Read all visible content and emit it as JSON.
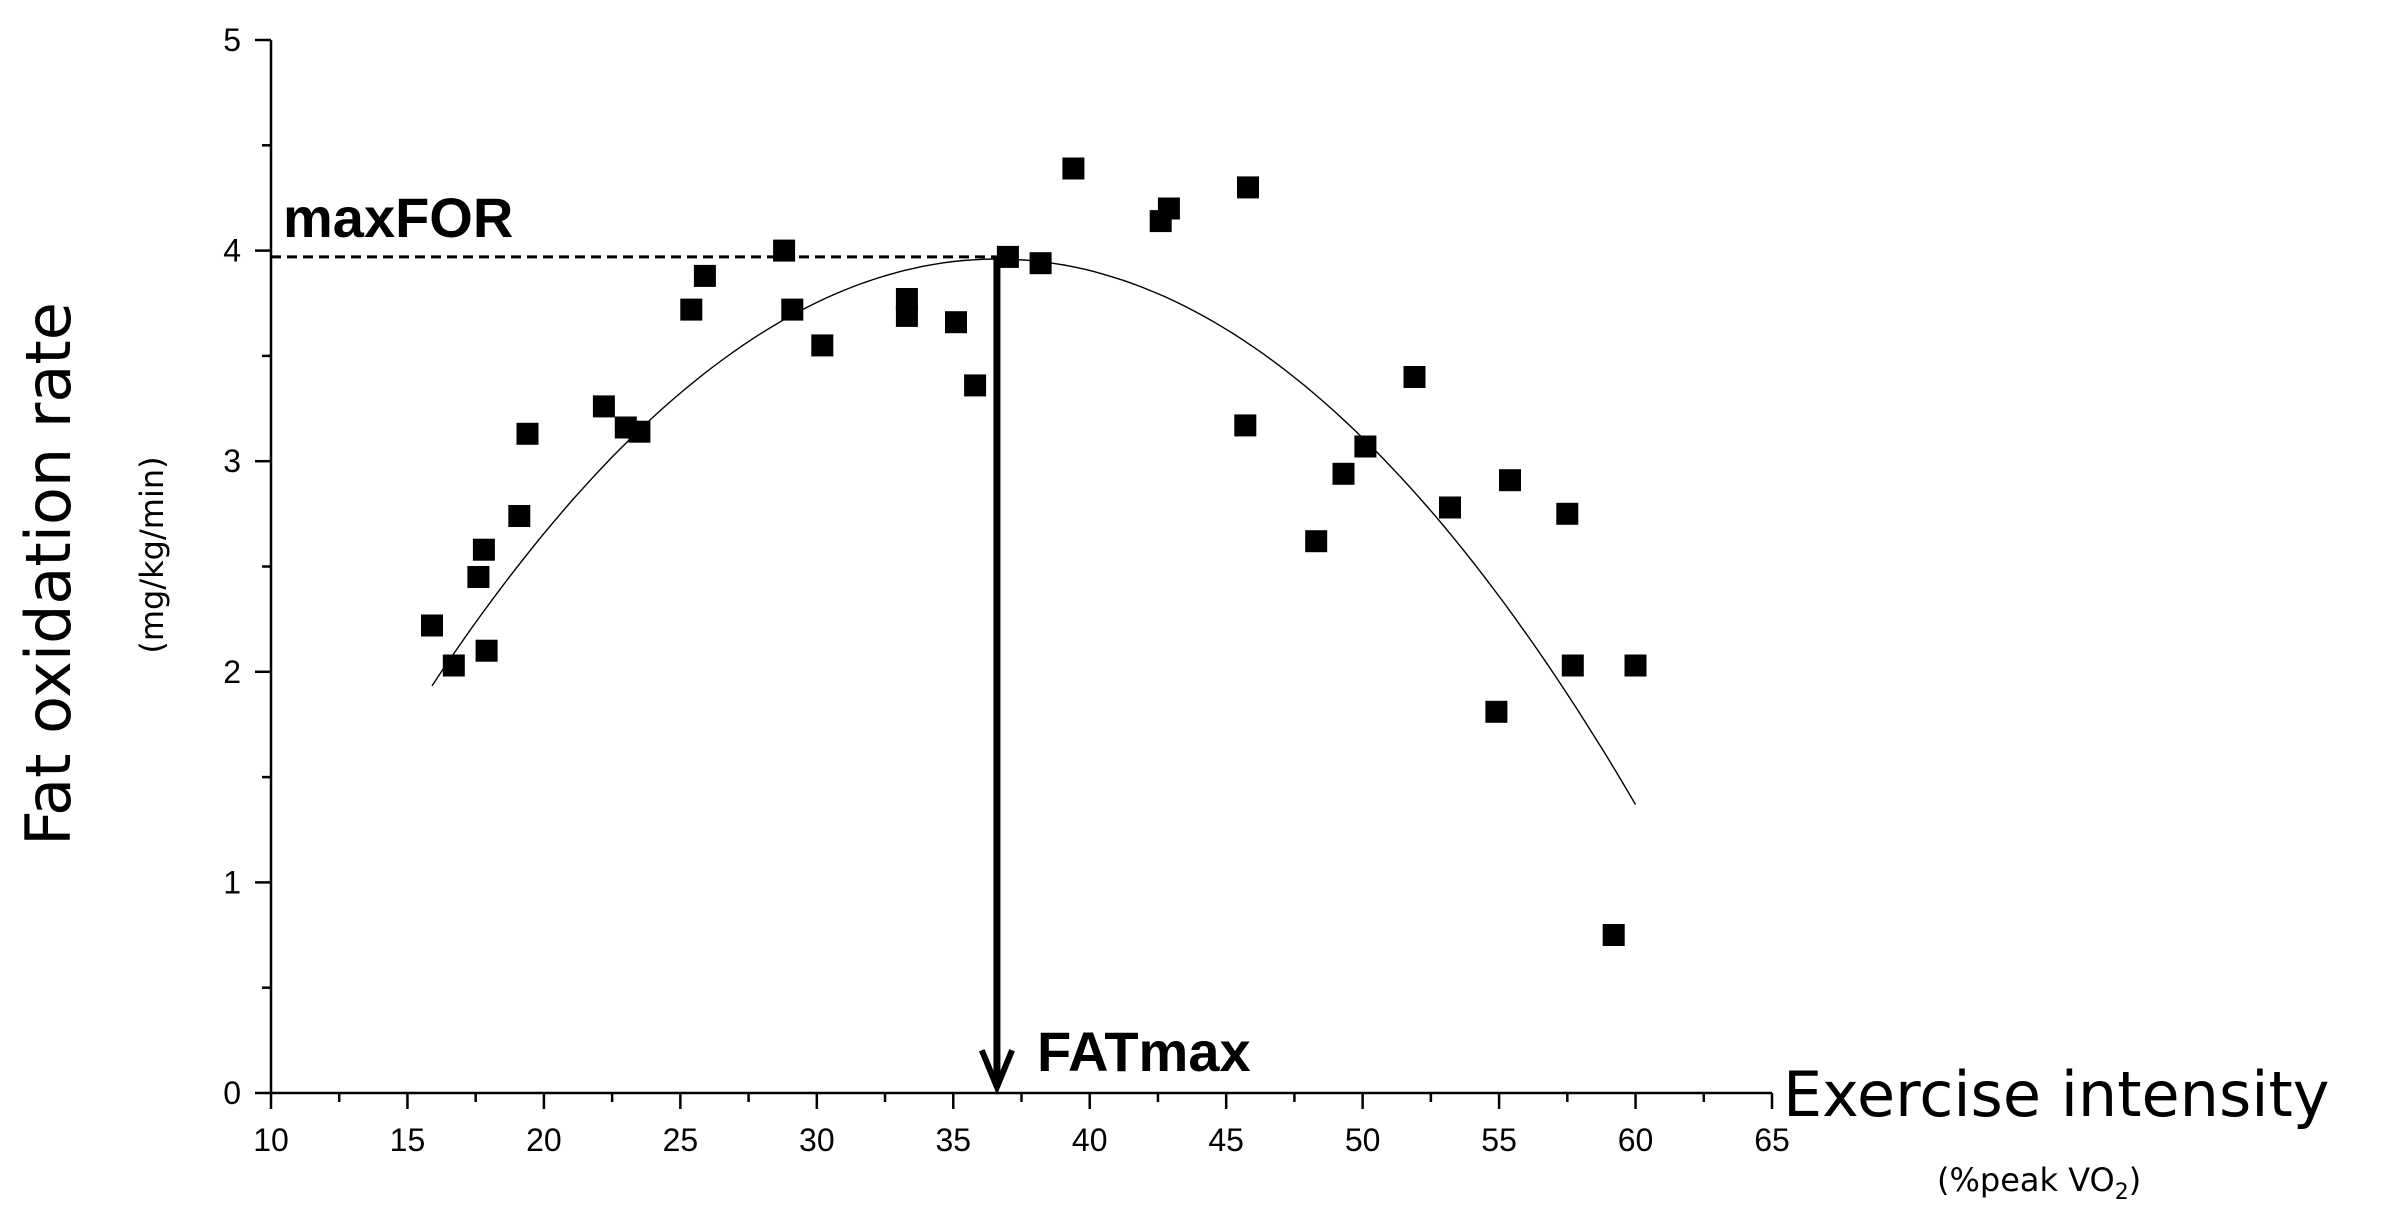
{
  "chart_data": {
    "type": "scatter",
    "title": "",
    "ylabel": "Fat oxidation rate",
    "ylabel_unit": "(mg/kg/min)",
    "xlabel": "Exercise intensity",
    "xlabel_unit_prefix": "(%peak VO",
    "xlabel_unit_sub": "2",
    "xlabel_unit_suffix": ")",
    "xlim": [
      10,
      65
    ],
    "ylim": [
      0,
      5
    ],
    "xticks": [
      10,
      15,
      20,
      25,
      30,
      35,
      40,
      45,
      50,
      55,
      60,
      65
    ],
    "yticks": [
      0,
      1,
      2,
      3,
      4,
      5
    ],
    "grid": false,
    "points": [
      {
        "x": 15.9,
        "y": 2.22
      },
      {
        "x": 16.7,
        "y": 2.03
      },
      {
        "x": 17.6,
        "y": 2.45
      },
      {
        "x": 17.8,
        "y": 2.58
      },
      {
        "x": 17.9,
        "y": 2.1
      },
      {
        "x": 19.1,
        "y": 2.74
      },
      {
        "x": 19.4,
        "y": 3.13
      },
      {
        "x": 22.2,
        "y": 3.26
      },
      {
        "x": 23.0,
        "y": 3.16
      },
      {
        "x": 23.5,
        "y": 3.14
      },
      {
        "x": 25.4,
        "y": 3.72
      },
      {
        "x": 25.9,
        "y": 3.88
      },
      {
        "x": 28.8,
        "y": 4.0
      },
      {
        "x": 29.1,
        "y": 3.72
      },
      {
        "x": 30.2,
        "y": 3.55
      },
      {
        "x": 33.3,
        "y": 3.77
      },
      {
        "x": 33.3,
        "y": 3.69
      },
      {
        "x": 35.1,
        "y": 3.66
      },
      {
        "x": 35.8,
        "y": 3.36
      },
      {
        "x": 37.0,
        "y": 3.97
      },
      {
        "x": 38.2,
        "y": 3.94
      },
      {
        "x": 39.4,
        "y": 4.39
      },
      {
        "x": 42.6,
        "y": 4.14
      },
      {
        "x": 42.9,
        "y": 4.2
      },
      {
        "x": 45.7,
        "y": 3.17
      },
      {
        "x": 45.8,
        "y": 4.3
      },
      {
        "x": 48.3,
        "y": 2.62
      },
      {
        "x": 49.3,
        "y": 2.94
      },
      {
        "x": 50.1,
        "y": 3.07
      },
      {
        "x": 51.9,
        "y": 3.4
      },
      {
        "x": 53.2,
        "y": 2.78
      },
      {
        "x": 54.9,
        "y": 1.81
      },
      {
        "x": 55.4,
        "y": 2.91
      },
      {
        "x": 57.5,
        "y": 2.75
      },
      {
        "x": 57.7,
        "y": 2.03
      },
      {
        "x": 59.2,
        "y": 0.75
      },
      {
        "x": 60.0,
        "y": 2.03
      }
    ],
    "fit_curve": {
      "type": "quadratic",
      "vertex_x": 36.6,
      "vertex_y": 3.96,
      "a": -0.00473,
      "x_range": [
        15.9,
        60.0
      ]
    },
    "annotations": {
      "max_label": "maxFOR",
      "max_value": 3.97,
      "peak_label": "FATmax",
      "peak_x": 36.6
    }
  }
}
